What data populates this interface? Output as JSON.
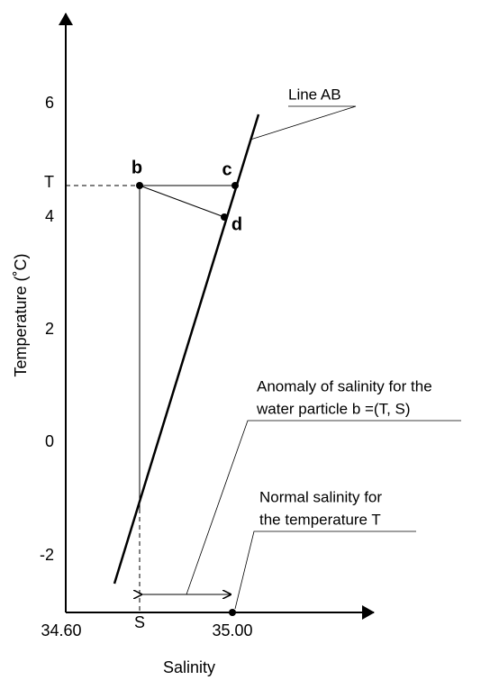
{
  "axes": {
    "x_label": "Salinity",
    "y_label": "Temperature (˚C)",
    "y_ticks": [
      "6",
      "4",
      "2",
      "0",
      "-2"
    ],
    "x_ticks": [
      "34.60",
      "35.00"
    ],
    "marker_t": "T",
    "marker_s": "S"
  },
  "points": {
    "b": "b",
    "c": "c",
    "d": "d"
  },
  "annotations": {
    "line_ab": "Line AB",
    "anomaly": [
      "Anomaly of salinity for the",
      "water particle b =(T, S)"
    ],
    "normal": [
      "Normal salinity for",
      "the temperature T"
    ]
  }
}
